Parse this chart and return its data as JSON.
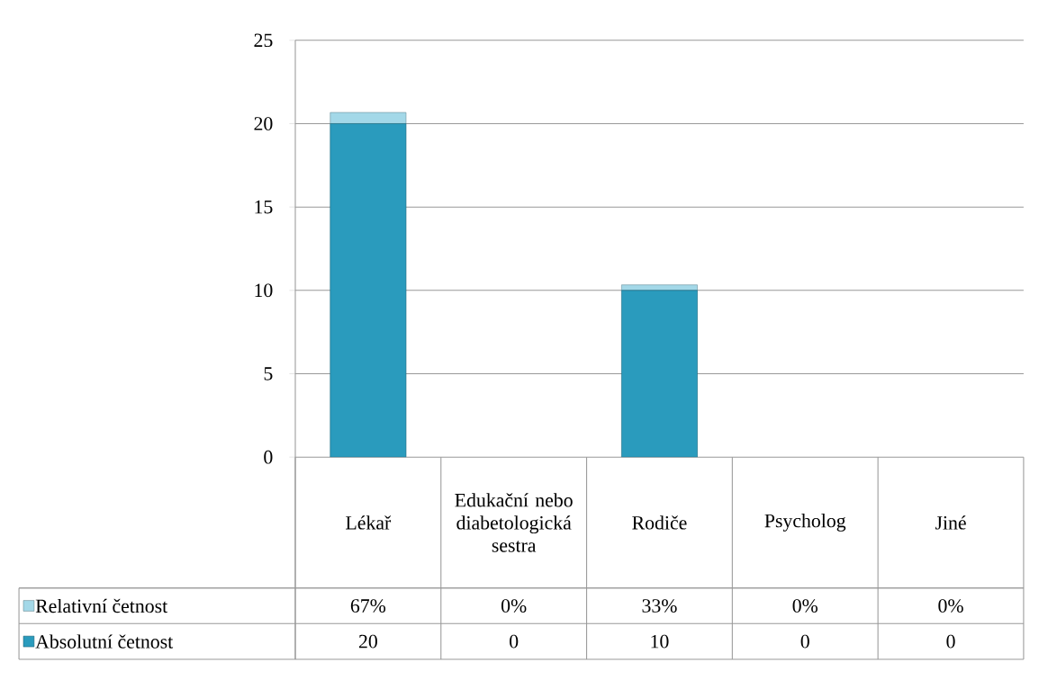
{
  "chart_data": {
    "type": "bar",
    "stacked": true,
    "categories": [
      "Lékař",
      "Edukační nebo diabetologická sestra",
      "Rodiče",
      "Psycholog",
      "Jiné"
    ],
    "series": [
      {
        "name": "Absolutní četnost",
        "color": "#2a9bbd",
        "values": [
          20,
          0,
          10,
          0,
          0
        ],
        "value_labels": [
          "20",
          "0",
          "10",
          "0",
          "0"
        ]
      },
      {
        "name": "Relativní četnost",
        "color": "#a3d8e8",
        "values": [
          0.67,
          0,
          0.33,
          0,
          0
        ],
        "value_labels": [
          "67%",
          "0%",
          "33%",
          "0%",
          "0%"
        ]
      }
    ],
    "ylim": [
      0,
      25
    ],
    "yticks": [
      0,
      5,
      10,
      15,
      20,
      25
    ],
    "grid": "y",
    "legend": "bottom"
  }
}
